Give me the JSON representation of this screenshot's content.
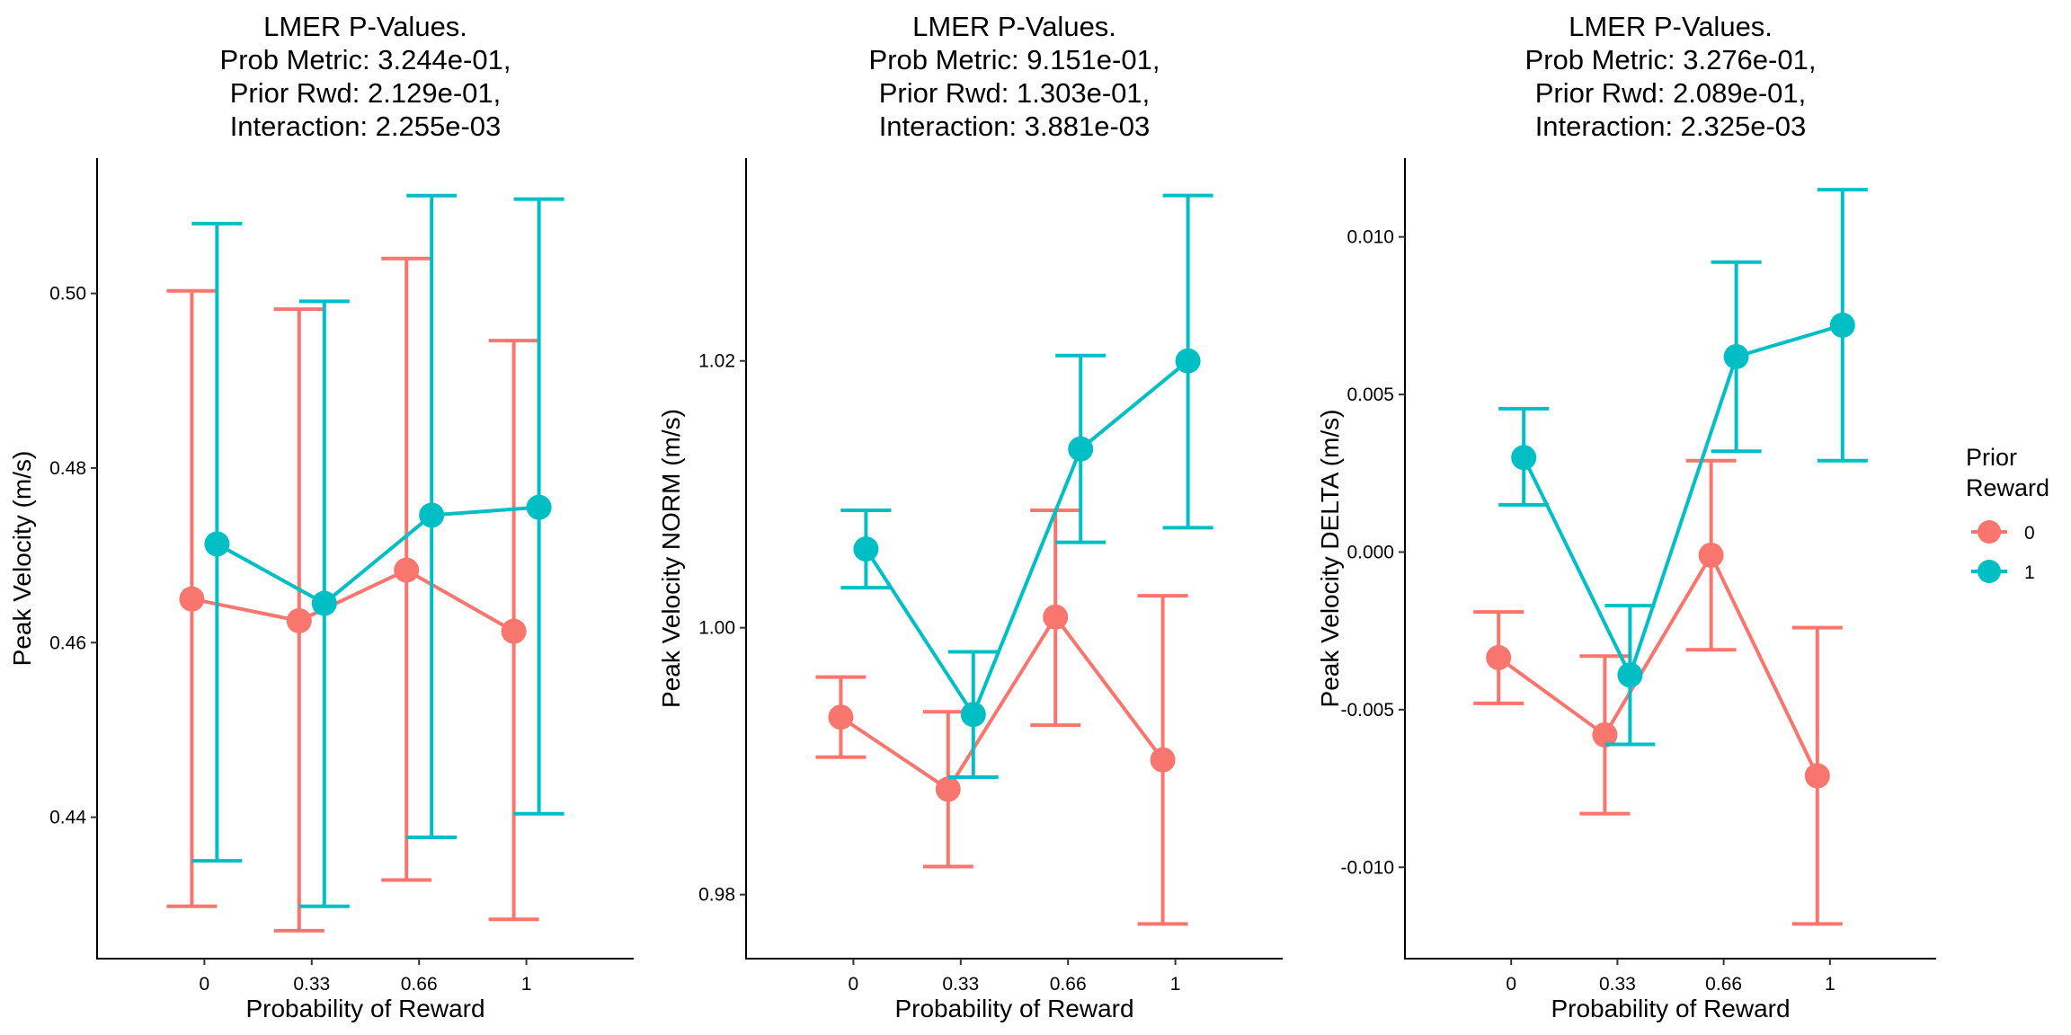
{
  "colors": {
    "reward_0": "#F8766D",
    "reward_1": "#00BFC4"
  },
  "legend": {
    "title_line1": "Prior",
    "title_line2": "Reward",
    "items": [
      {
        "label": "0",
        "color": "#F8766D"
      },
      {
        "label": "1",
        "color": "#00BFC4"
      }
    ]
  },
  "chart_data": [
    {
      "type": "line",
      "title_lines": [
        "LMER P-Values.",
        "Prob Metric: 3.244e-01,",
        "Prior Rwd: 2.129e-01,",
        "Interaction: 2.255e-03"
      ],
      "xlabel": "Probability of Reward",
      "ylabel": "Peak Velocity (m/s)",
      "categories": [
        "0",
        "0.33",
        "0.66",
        "1"
      ],
      "ylim": [
        0.4238,
        0.5155
      ],
      "yticks": [
        0.44,
        0.46,
        0.48,
        0.5
      ],
      "ytick_labels": [
        "0.44",
        "0.46",
        "0.48",
        "0.50"
      ],
      "grid": false,
      "legend_position": "right",
      "series": [
        {
          "name": "0",
          "mean": [
            0.465,
            0.4625,
            0.4683,
            0.4613
          ],
          "lower": [
            0.4298,
            0.427,
            0.4328,
            0.4283
          ],
          "upper": [
            0.5003,
            0.4982,
            0.504,
            0.4946
          ]
        },
        {
          "name": "1",
          "mean": [
            0.4713,
            0.4645,
            0.4746,
            0.4755
          ],
          "lower": [
            0.435,
            0.4298,
            0.4377,
            0.4404
          ],
          "upper": [
            0.508,
            0.4991,
            0.5112,
            0.5108
          ]
        }
      ]
    },
    {
      "type": "line",
      "title_lines": [
        "LMER P-Values.",
        "Prob Metric: 9.151e-01,",
        "Prior Rwd: 1.303e-01,",
        "Interaction: 3.881e-03"
      ],
      "xlabel": "Probability of Reward",
      "ylabel": "Peak Velocity NORM (m/s)",
      "categories": [
        "0",
        "0.33",
        "0.66",
        "1"
      ],
      "ylim": [
        0.9752,
        1.0352
      ],
      "yticks": [
        0.98,
        1.0,
        1.02
      ],
      "ytick_labels": [
        "0.98",
        "1.00",
        "1.02"
      ],
      "grid": false,
      "legend_position": "right",
      "series": [
        {
          "name": "0",
          "mean": [
            0.9933,
            0.9879,
            1.0008,
            0.9901
          ],
          "lower": [
            0.9903,
            0.9821,
            0.9927,
            0.9778
          ],
          "upper": [
            0.9963,
            0.9937,
            1.0088,
            1.0024
          ]
        },
        {
          "name": "1",
          "mean": [
            1.0059,
            0.9935,
            1.0134,
            1.02
          ],
          "lower": [
            1.003,
            0.9888,
            1.0064,
            1.0075
          ],
          "upper": [
            1.0088,
            0.9982,
            1.0204,
            1.0324
          ]
        }
      ]
    },
    {
      "type": "line",
      "title_lines": [
        "LMER P-Values.",
        "Prob Metric: 3.276e-01,",
        "Prior Rwd: 2.089e-01,",
        "Interaction: 2.325e-03"
      ],
      "xlabel": "Probability of Reward",
      "ylabel": "Peak Velocity DELTA (m/s)",
      "categories": [
        "0",
        "0.33",
        "0.66",
        "1"
      ],
      "ylim": [
        -0.0129,
        0.0125
      ],
      "yticks": [
        -0.01,
        -0.005,
        0.0,
        0.005,
        0.01
      ],
      "ytick_labels": [
        "-0.010",
        "-0.005",
        "0.000",
        "0.005",
        "0.010"
      ],
      "grid": false,
      "legend_position": "right",
      "series": [
        {
          "name": "0",
          "mean": [
            -0.00335,
            -0.0058,
            -0.0001,
            -0.0071
          ],
          "lower": [
            -0.0048,
            -0.0083,
            -0.0031,
            -0.0118
          ],
          "upper": [
            -0.0019,
            -0.0033,
            0.0029,
            -0.0024
          ]
        },
        {
          "name": "1",
          "mean": [
            0.003,
            -0.0039,
            0.0062,
            0.0072
          ],
          "lower": [
            0.0015,
            -0.0061,
            0.0032,
            0.0029
          ],
          "upper": [
            0.00455,
            -0.0017,
            0.0092,
            0.0115
          ]
        }
      ]
    }
  ]
}
